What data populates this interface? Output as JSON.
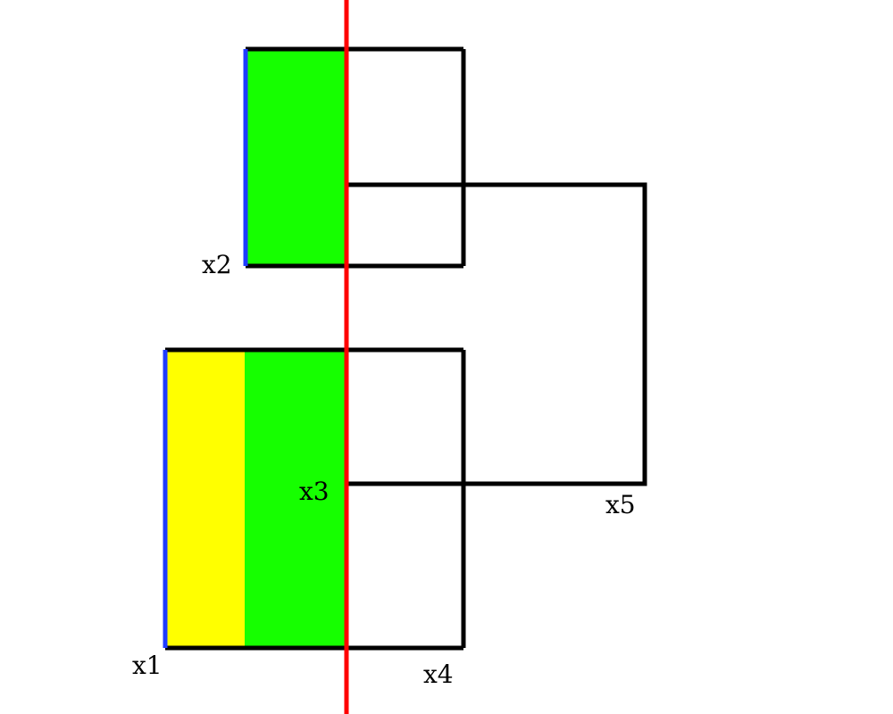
{
  "labels": {
    "x1": "x1",
    "x2": "x2",
    "x3": "x3",
    "x4": "x4",
    "x5": "x5"
  },
  "colors": {
    "background": "#ffffff",
    "outline": "#000000",
    "green_fill": "#16ff00",
    "yellow_fill": "#ffff00",
    "blue_edge": "#1f3cff",
    "red_line": "#ff0000"
  }
}
